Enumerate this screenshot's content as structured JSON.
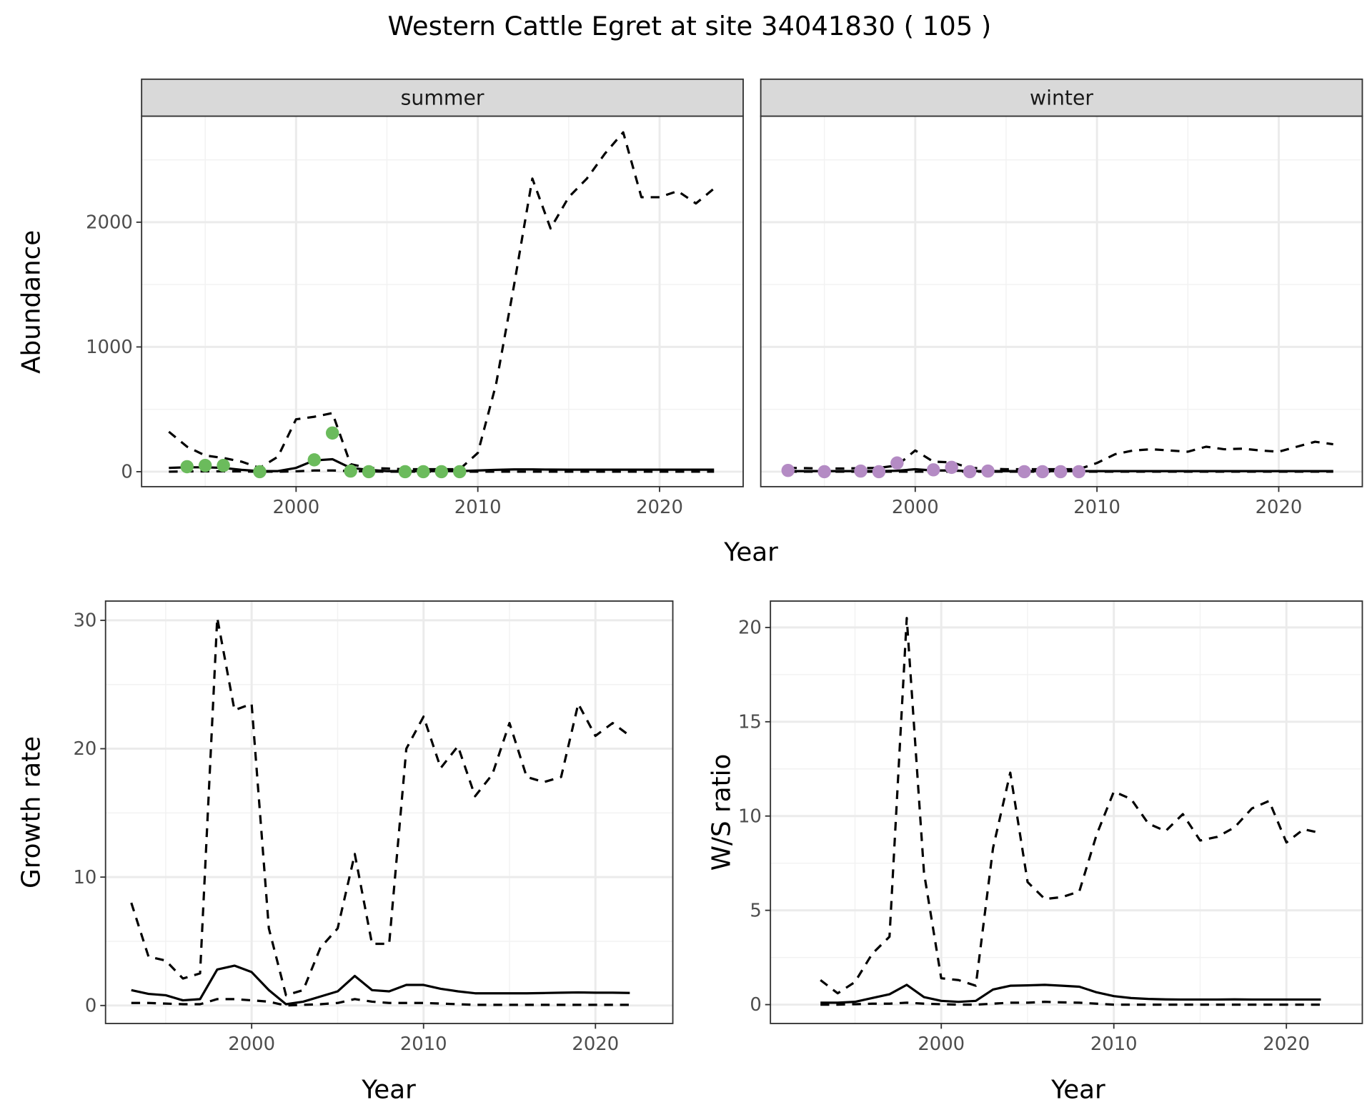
{
  "title": "Western Cattle Egret at site 34041830 ( 105 )",
  "colors": {
    "summer_points": "#6BBB5C",
    "winter_points": "#B48BC4",
    "lines": "#000000",
    "strip_bg": "#D9D9D9"
  },
  "abundance_axes": {
    "xlabel": "Year",
    "ylabel": "Abundance"
  },
  "chart_data": [
    {
      "type": "line",
      "strip": "summer",
      "xlim": [
        1991.5,
        2024.6
      ],
      "ylim": [
        -120,
        2850
      ],
      "xticks": [
        "2000",
        "2010",
        "2020"
      ],
      "xtick_values": [
        2000,
        2010,
        2020
      ],
      "yticks": [
        "0",
        "1000",
        "2000"
      ],
      "ytick_values": [
        0,
        1000,
        2000
      ],
      "grid": true,
      "x": [
        1993,
        1994,
        1995,
        1996,
        1997,
        1998,
        1999,
        2000,
        2001,
        2002,
        2003,
        2004,
        2005,
        2006,
        2007,
        2008,
        2009,
        2010,
        2011,
        2012,
        2013,
        2014,
        2015,
        2016,
        2017,
        2018,
        2019,
        2020,
        2021,
        2022,
        2023
      ],
      "series": [
        {
          "style": "dashed",
          "values": [
            320,
            200,
            130,
            110,
            80,
            30,
            120,
            420,
            440,
            470,
            60,
            30,
            25,
            20,
            20,
            20,
            20,
            150,
            700,
            1500,
            2350,
            1950,
            2200,
            2350,
            2550,
            2720,
            2200,
            2200,
            2250,
            2150,
            2270
          ]
        },
        {
          "style": "solid",
          "values": [
            30,
            35,
            35,
            30,
            15,
            5,
            5,
            30,
            90,
            100,
            30,
            15,
            5,
            5,
            5,
            5,
            5,
            10,
            15,
            18,
            18,
            17,
            16,
            16,
            16,
            16,
            16,
            16,
            16,
            16,
            16
          ]
        },
        {
          "style": "dashed",
          "values": [
            0,
            2,
            3,
            3,
            2,
            0,
            0,
            3,
            10,
            10,
            5,
            2,
            0,
            0,
            0,
            0,
            0,
            0,
            0,
            0,
            0,
            0,
            0,
            0,
            0,
            0,
            0,
            0,
            0,
            0,
            0
          ]
        }
      ],
      "points": {
        "x": [
          1994,
          1995,
          1996,
          1998,
          2001,
          2002,
          2003,
          2004,
          2006,
          2007,
          2008,
          2009
        ],
        "values": [
          40,
          50,
          50,
          0,
          95,
          310,
          5,
          0,
          0,
          0,
          0,
          0
        ]
      }
    },
    {
      "type": "line",
      "strip": "winter",
      "xlim": [
        1991.5,
        2024.6
      ],
      "ylim": [
        -120,
        2850
      ],
      "xticks": [
        "2000",
        "2010",
        "2020"
      ],
      "xtick_values": [
        2000,
        2010,
        2020
      ],
      "yticks": [],
      "ytick_values": [
        0,
        1000,
        2000
      ],
      "grid": true,
      "x": [
        1993,
        1994,
        1995,
        1996,
        1997,
        1998,
        1999,
        2000,
        2001,
        2002,
        2003,
        2004,
        2005,
        2006,
        2007,
        2008,
        2009,
        2010,
        2011,
        2012,
        2013,
        2014,
        2015,
        2016,
        2017,
        2018,
        2019,
        2020,
        2021,
        2022,
        2023
      ],
      "series": [
        {
          "style": "dashed",
          "values": [
            30,
            28,
            25,
            25,
            28,
            30,
            50,
            170,
            80,
            75,
            30,
            25,
            20,
            20,
            20,
            20,
            20,
            70,
            140,
            170,
            180,
            170,
            160,
            200,
            180,
            185,
            170,
            160,
            200,
            240,
            220
          ]
        },
        {
          "style": "solid",
          "values": [
            5,
            5,
            5,
            5,
            5,
            5,
            8,
            20,
            10,
            10,
            5,
            5,
            5,
            5,
            5,
            5,
            5,
            5,
            5,
            5,
            5,
            5,
            5,
            5,
            5,
            5,
            5,
            5,
            5,
            5,
            5
          ]
        },
        {
          "style": "dashed",
          "values": [
            0,
            0,
            0,
            0,
            0,
            0,
            0,
            0,
            0,
            0,
            0,
            0,
            0,
            0,
            0,
            0,
            0,
            0,
            0,
            0,
            0,
            0,
            0,
            0,
            0,
            0,
            0,
            0,
            0,
            0,
            0
          ]
        }
      ],
      "points": {
        "x": [
          1993,
          1995,
          1997,
          1998,
          1999,
          2001,
          2002,
          2003,
          2004,
          2006,
          2007,
          2008,
          2009
        ],
        "values": [
          10,
          0,
          5,
          0,
          70,
          15,
          35,
          0,
          5,
          0,
          0,
          0,
          0
        ]
      }
    },
    {
      "type": "line",
      "xlabel": "Year",
      "ylabel": "Growth rate",
      "xlim": [
        1991.5,
        2024.5
      ],
      "ylim": [
        -1.4,
        31.5
      ],
      "xticks": [
        "2000",
        "2010",
        "2020"
      ],
      "xtick_values": [
        2000,
        2010,
        2020
      ],
      "yticks": [
        "0",
        "10",
        "20",
        "30"
      ],
      "ytick_values": [
        0,
        10,
        20,
        30
      ],
      "grid": true,
      "x": [
        1993,
        1994,
        1995,
        1996,
        1997,
        1998,
        1999,
        2000,
        2001,
        2002,
        2003,
        2004,
        2005,
        2006,
        2007,
        2008,
        2009,
        2010,
        2011,
        2012,
        2013,
        2014,
        2015,
        2016,
        2017,
        2018,
        2019,
        2020,
        2021,
        2022
      ],
      "series": [
        {
          "style": "dashed",
          "values": [
            8,
            3.8,
            3.5,
            2.1,
            2.5,
            30.2,
            23,
            23.5,
            6,
            0.8,
            1.2,
            4.5,
            6,
            11.8,
            4.8,
            4.8,
            20,
            22.5,
            18.5,
            20.2,
            16.3,
            18,
            22,
            17.8,
            17.4,
            17.8,
            23.5,
            21,
            22,
            21
          ]
        },
        {
          "style": "solid",
          "values": [
            1.2,
            0.9,
            0.8,
            0.4,
            0.5,
            2.8,
            3.1,
            2.6,
            1.2,
            0.1,
            0.3,
            0.7,
            1.1,
            2.3,
            1.2,
            1.1,
            1.6,
            1.6,
            1.3,
            1.1,
            0.95,
            0.95,
            0.95,
            0.95,
            0.97,
            1.0,
            1.02,
            1.0,
            1.0,
            0.98
          ]
        },
        {
          "style": "dashed",
          "values": [
            0.2,
            0.2,
            0.15,
            0.1,
            0.1,
            0.5,
            0.5,
            0.4,
            0.3,
            0,
            0.05,
            0.1,
            0.2,
            0.5,
            0.3,
            0.2,
            0.2,
            0.2,
            0.15,
            0.1,
            0.05,
            0.05,
            0.05,
            0.05,
            0.05,
            0.05,
            0.05,
            0.05,
            0.05,
            0.05
          ]
        }
      ]
    },
    {
      "type": "line",
      "xlabel": "Year",
      "ylabel": "W/S ratio",
      "xlim": [
        1990.1,
        2024.4
      ],
      "ylim": [
        -1.0,
        21.4
      ],
      "xticks": [
        "2000",
        "2010",
        "2020"
      ],
      "xtick_values": [
        2000,
        2010,
        2020
      ],
      "yticks": [
        "0",
        "5",
        "10",
        "15",
        "20"
      ],
      "ytick_values": [
        0,
        5,
        10,
        15,
        20
      ],
      "grid": true,
      "x": [
        1993,
        1994,
        1995,
        1996,
        1997,
        1998,
        1999,
        2000,
        2001,
        2002,
        2003,
        2004,
        2005,
        2006,
        2007,
        2008,
        2009,
        2010,
        2011,
        2012,
        2013,
        2014,
        2015,
        2016,
        2017,
        2018,
        2019,
        2020,
        2021,
        2022
      ],
      "series": [
        {
          "style": "dashed",
          "values": [
            1.3,
            0.6,
            1.2,
            2.7,
            3.6,
            20.5,
            7,
            1.4,
            1.3,
            1.0,
            8.3,
            12.3,
            6.5,
            5.6,
            5.7,
            6.0,
            9,
            11.3,
            10.9,
            9.6,
            9.2,
            10.1,
            8.7,
            8.9,
            9.4,
            10.4,
            10.8,
            8.6,
            9.3,
            9.1
          ]
        },
        {
          "style": "solid",
          "values": [
            0.1,
            0.1,
            0.15,
            0.35,
            0.55,
            1.05,
            0.4,
            0.2,
            0.15,
            0.2,
            0.8,
            1.0,
            1.02,
            1.05,
            1.0,
            0.95,
            0.65,
            0.45,
            0.35,
            0.3,
            0.28,
            0.27,
            0.27,
            0.27,
            0.28,
            0.27,
            0.27,
            0.27,
            0.27,
            0.27
          ]
        },
        {
          "style": "dashed",
          "values": [
            0,
            0,
            0.02,
            0.05,
            0.05,
            0.1,
            0.05,
            0.02,
            0,
            0,
            0.05,
            0.1,
            0.1,
            0.15,
            0.12,
            0.1,
            0.05,
            0,
            0,
            0,
            0,
            0,
            0,
            0,
            0,
            0,
            0,
            0,
            0,
            0
          ]
        }
      ]
    }
  ]
}
